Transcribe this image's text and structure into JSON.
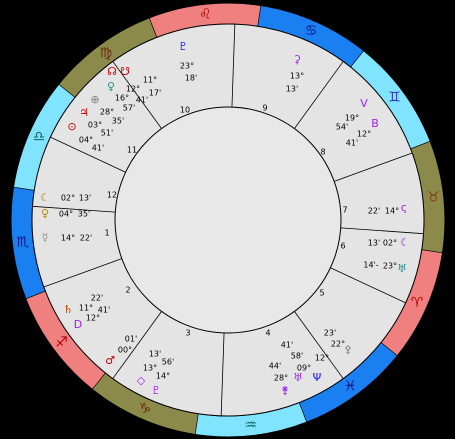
{
  "signs": [
    {
      "glyph": "♈",
      "fill": "#f08080",
      "color": "#b00000"
    },
    {
      "glyph": "♉",
      "fill": "#8c8a4a",
      "color": "#8a3a10"
    },
    {
      "glyph": "♊",
      "fill": "#80e4ff",
      "color": "#3030c0"
    },
    {
      "glyph": "♋",
      "fill": "#1a7ff0",
      "color": "#101080"
    },
    {
      "glyph": "♌",
      "fill": "#f08080",
      "color": "#b00000"
    },
    {
      "glyph": "♍",
      "fill": "#8c8a4a",
      "color": "#6a2a10"
    },
    {
      "glyph": "♎",
      "fill": "#80e4ff",
      "color": "#106060"
    },
    {
      "glyph": "♏",
      "fill": "#1a7ff0",
      "color": "#101080"
    },
    {
      "glyph": "♐",
      "fill": "#f08080",
      "color": "#b00000"
    },
    {
      "glyph": "♑",
      "fill": "#8c8a4a",
      "color": "#6a2a10"
    },
    {
      "glyph": "♒",
      "fill": "#80e4ff",
      "color": "#106060"
    },
    {
      "glyph": "♓",
      "fill": "#1a7ff0",
      "color": "#101080"
    }
  ],
  "houses": [
    "1",
    "2",
    "3",
    "4",
    "5",
    "6",
    "7",
    "8",
    "9",
    "10",
    "11",
    "12"
  ],
  "points": [
    {
      "glyph": "♇",
      "color": "#1a1aff",
      "degree": "23°",
      "minute": "18'"
    },
    {
      "glyph": "⚳",
      "color": "#a020f0",
      "degree": "13°",
      "minute": "13'"
    },
    {
      "glyph": "V",
      "color": "#a020f0",
      "degree": "19°",
      "minute": "54'"
    },
    {
      "glyph": "B",
      "color": "#a020f0",
      "degree": "12°",
      "minute": "41'"
    },
    {
      "glyph": "ς",
      "color": "#a020f0",
      "degree": "14°",
      "minute": "22'"
    },
    {
      "glyph": "☾",
      "color": "#a020f0",
      "degree": "02°",
      "minute": "13'"
    },
    {
      "glyph": "♅",
      "color": "#1e9090",
      "degree": "23°",
      "minute": "14'-"
    },
    {
      "glyph": "⚴",
      "color": "#808080",
      "degree": "22°",
      "minute": "23'"
    },
    {
      "glyph": "Ψ",
      "color": "#1a1aff",
      "degree": "12°",
      "minute": "58'"
    },
    {
      "glyph": "♅",
      "color": "#a020f0",
      "degree": "09°",
      "minute": "41'"
    },
    {
      "glyph": "⚵",
      "color": "#a020f0",
      "degree": "28°",
      "minute": "44'"
    },
    {
      "glyph": "♂",
      "color": "#c00000",
      "degree": "00°",
      "minute": "01'"
    },
    {
      "glyph": "◇",
      "color": "#a020f0",
      "degree": "13°",
      "minute": "56'"
    },
    {
      "glyph": "♇",
      "color": "#a020f0",
      "degree": "14°",
      "minute": "13'"
    },
    {
      "glyph": "♄",
      "color": "#c04000",
      "degree": "11°",
      "minute": "22'"
    },
    {
      "glyph": "D",
      "color": "#a020f0",
      "degree": "12°",
      "minute": "41'"
    },
    {
      "glyph": "☾",
      "color": "#c08000",
      "degree": "02°",
      "minute": "13'"
    },
    {
      "glyph": "♀",
      "color": "#c08000",
      "degree": "04°",
      "minute": "35'"
    },
    {
      "glyph": "☿",
      "color": "#909090",
      "degree": "14°",
      "minute": "22'"
    },
    {
      "glyph": "☊",
      "color": "#c00000",
      "degree": "11°",
      "minute": "17'"
    },
    {
      "glyph": "♀",
      "color": "#1e9090",
      "degree": "12°",
      "minute": "41'"
    },
    {
      "glyph": "⊕",
      "color": "#808080",
      "degree": "16°",
      "minute": "57'"
    },
    {
      "glyph": "♃",
      "color": "#c00000",
      "degree": "28°",
      "minute": "35'"
    },
    {
      "glyph": "⊙",
      "color": "#c00000",
      "degree": "03°",
      "minute": "51'"
    },
    {
      "glyph": "☋",
      "color": "#c00000",
      "degree": "04°",
      "minute": "41'"
    }
  ]
}
